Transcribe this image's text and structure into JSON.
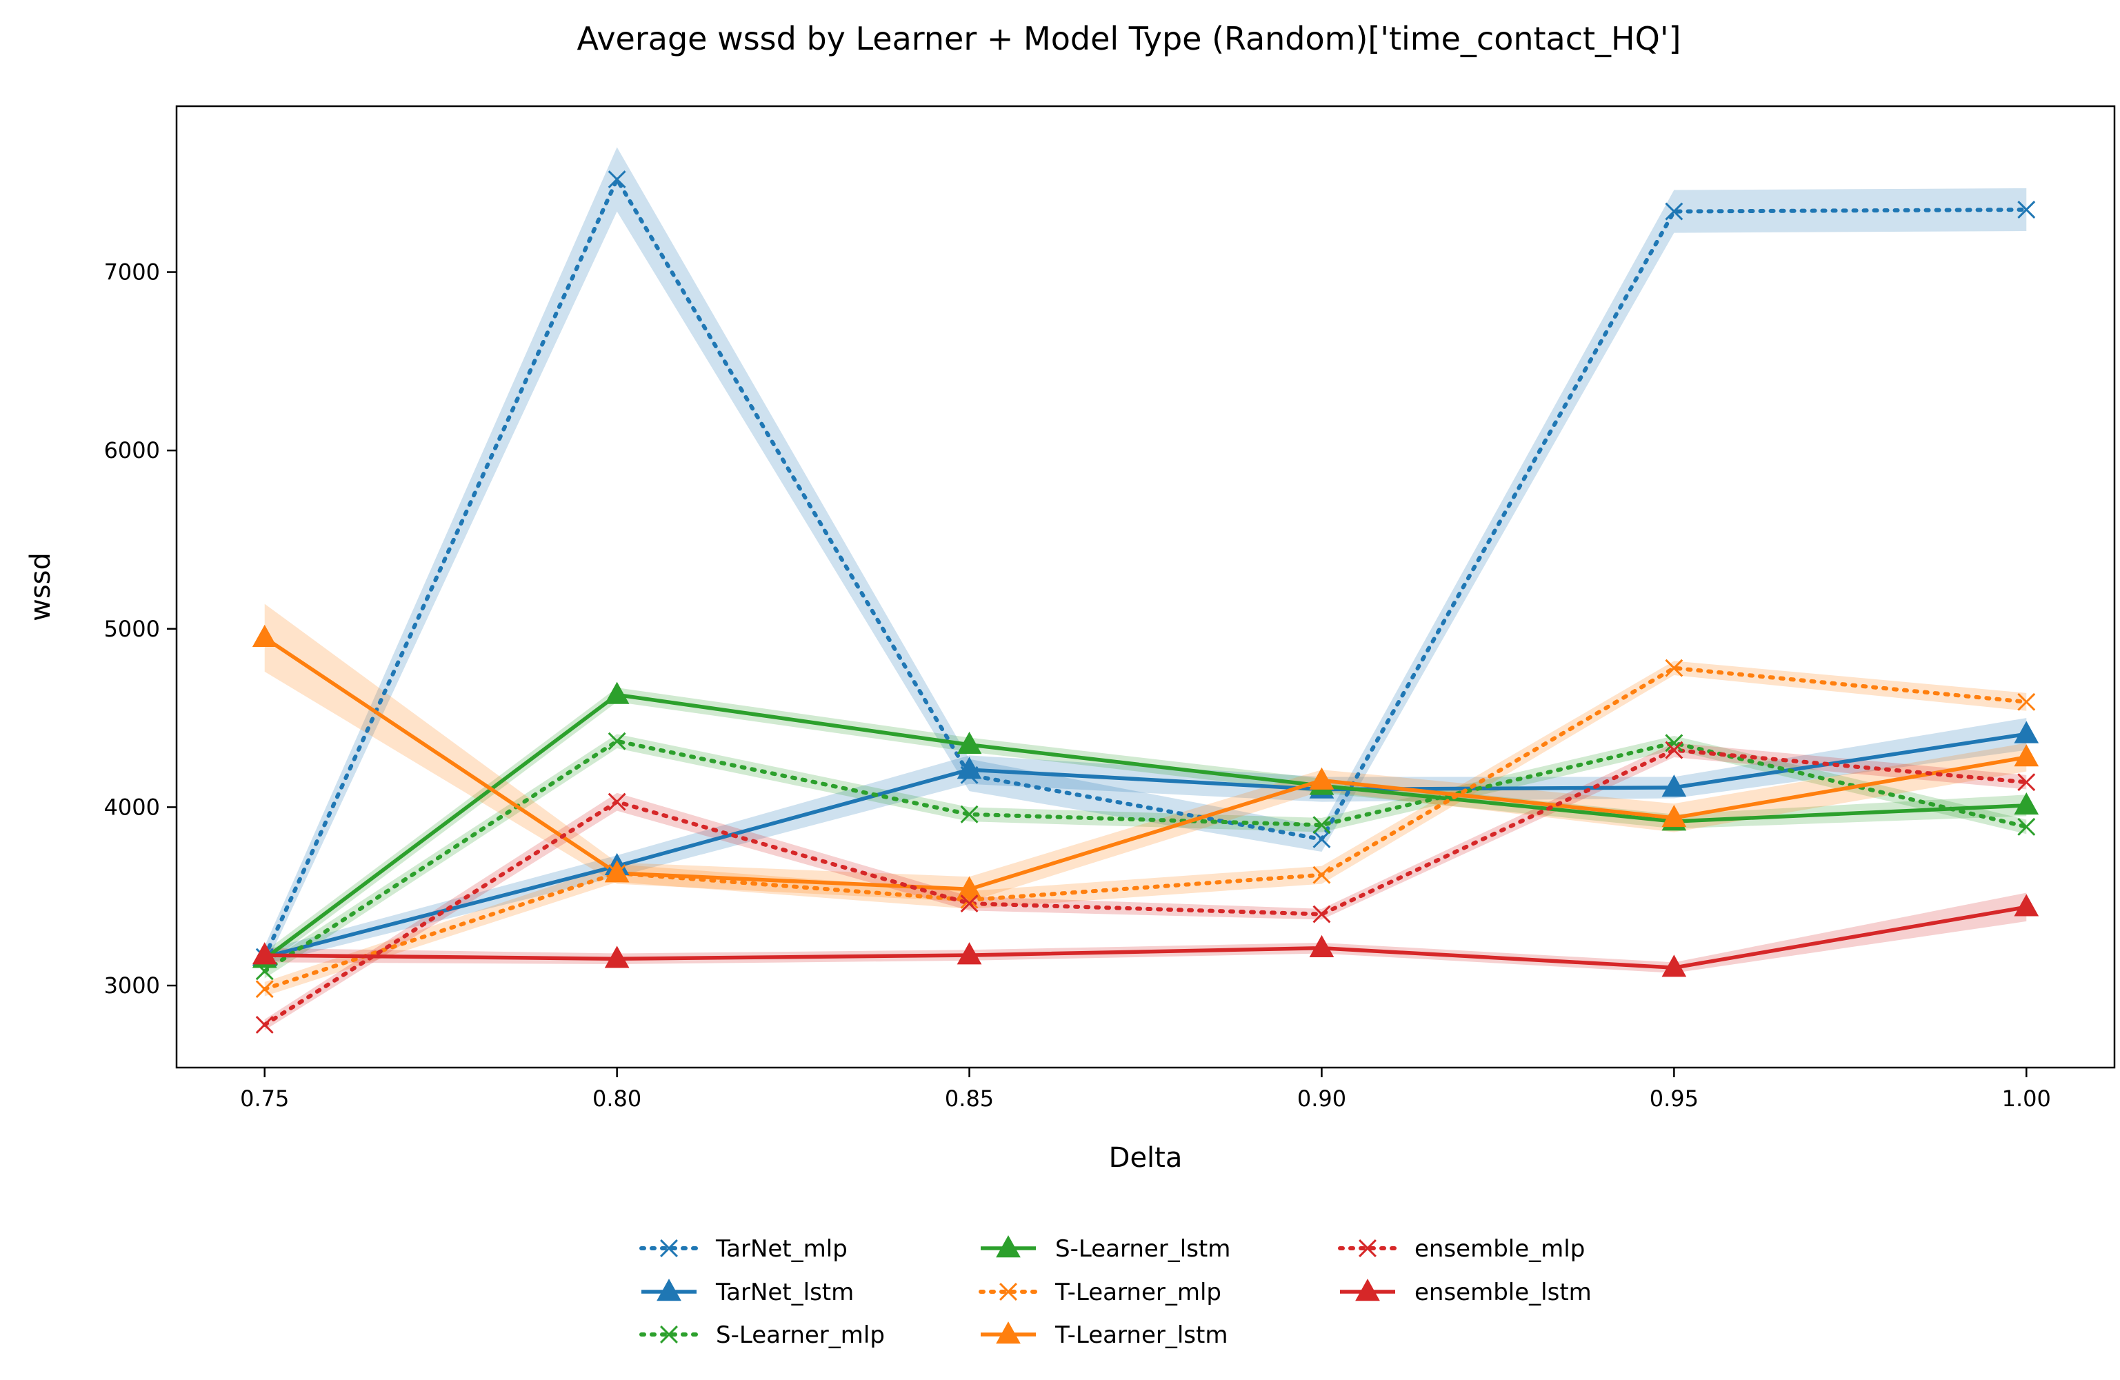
{
  "chart_data": {
    "type": "line",
    "title": "Average wssd by Learner + Model Type (Random)['time_contact_HQ']",
    "xlabel": "Delta",
    "ylabel": "wssd",
    "x": [
      0.75,
      0.8,
      0.85,
      0.9,
      0.95,
      1.0
    ],
    "x_tick_labels": [
      "0.75",
      "0.80",
      "0.85",
      "0.90",
      "0.95",
      "1.00"
    ],
    "y_ticks": [
      3000,
      4000,
      5000,
      6000,
      7000
    ],
    "y_tick_labels": [
      "3000",
      "4000",
      "5000",
      "6000",
      "7000"
    ],
    "xlim": [
      0.7375,
      1.0125
    ],
    "ylim": [
      2540,
      7930
    ],
    "grid": false,
    "legend_placement": "bottom-center",
    "series": [
      {
        "name": "TarNet_mlp",
        "color": "#1f77b4",
        "style": "dotted",
        "marker": "x",
        "values": [
          3160,
          7520,
          4180,
          3820,
          7340,
          7350
        ],
        "ci": [
          60,
          180,
          90,
          70,
          120,
          120
        ]
      },
      {
        "name": "TarNet_lstm",
        "color": "#1f77b4",
        "style": "solid",
        "marker": "triangle",
        "values": [
          3160,
          3670,
          4210,
          4100,
          4110,
          4410
        ],
        "ci": [
          40,
          60,
          80,
          70,
          60,
          90
        ]
      },
      {
        "name": "S-Learner_mlp",
        "color": "#2ca02c",
        "style": "dotted",
        "marker": "x",
        "values": [
          3080,
          4370,
          3960,
          3900,
          4360,
          3890
        ],
        "ci": [
          40,
          40,
          40,
          40,
          40,
          40
        ]
      },
      {
        "name": "S-Learner_lstm",
        "color": "#2ca02c",
        "style": "solid",
        "marker": "triangle",
        "values": [
          3150,
          4630,
          4350,
          4120,
          3920,
          4010
        ],
        "ci": [
          40,
          40,
          40,
          40,
          40,
          60
        ]
      },
      {
        "name": "T-Learner_mlp",
        "color": "#ff7f0e",
        "style": "dotted",
        "marker": "x",
        "values": [
          2980,
          3630,
          3480,
          3620,
          4780,
          4590
        ],
        "ci": [
          40,
          50,
          50,
          50,
          40,
          50
        ]
      },
      {
        "name": "T-Learner_lstm",
        "color": "#ff7f0e",
        "style": "solid",
        "marker": "triangle",
        "values": [
          4950,
          3630,
          3540,
          4150,
          3940,
          4280
        ],
        "ci": [
          190,
          60,
          70,
          60,
          80,
          80
        ]
      },
      {
        "name": "ensemble_mlp",
        "color": "#d62728",
        "style": "dotted",
        "marker": "x",
        "values": [
          2780,
          4030,
          3460,
          3400,
          4320,
          4140
        ],
        "ci": [
          30,
          50,
          40,
          30,
          40,
          40
        ]
      },
      {
        "name": "ensemble_lstm",
        "color": "#d62728",
        "style": "solid",
        "marker": "triangle",
        "values": [
          3170,
          3150,
          3170,
          3210,
          3100,
          3440
        ],
        "ci": [
          40,
          30,
          30,
          30,
          30,
          80
        ]
      }
    ]
  }
}
